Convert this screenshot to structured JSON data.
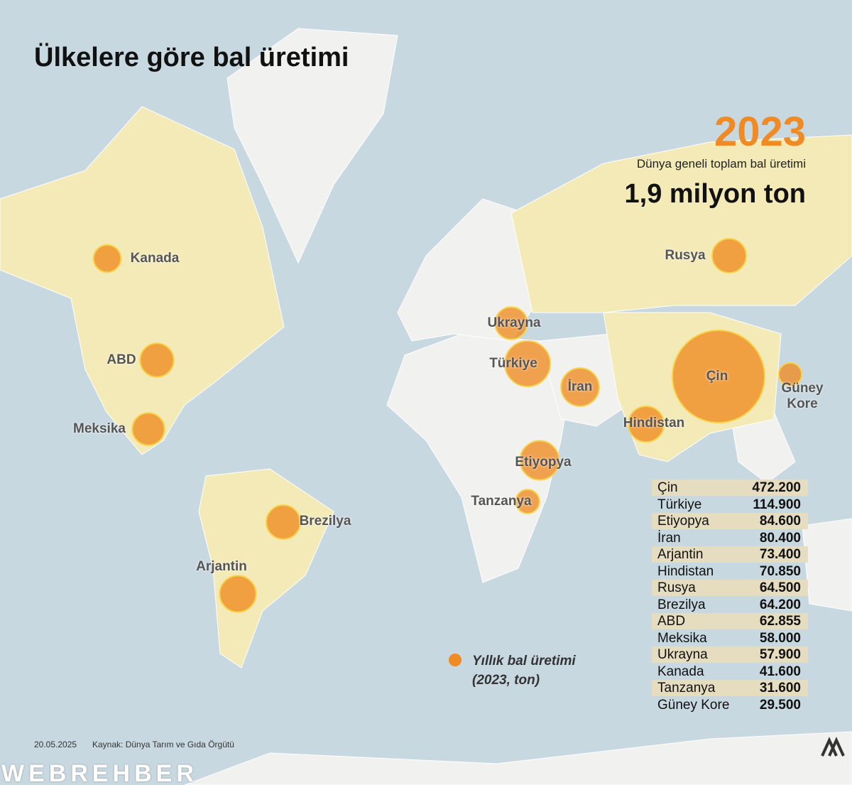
{
  "header": {
    "title": "Ülkelere göre bal üretimi",
    "year": "2023",
    "subtitle": "Dünya geneli toplam bal üretimi",
    "total": "1,9 milyon ton"
  },
  "countries": [
    {
      "name": "Çin",
      "value": 472200,
      "label": "472.200"
    },
    {
      "name": "Türkiye",
      "value": 114900,
      "label": "114.900"
    },
    {
      "name": "Etiyopya",
      "value": 84600,
      "label": "84.600"
    },
    {
      "name": "İran",
      "value": 80400,
      "label": "80.400"
    },
    {
      "name": "Arjantin",
      "value": 73400,
      "label": "73.400"
    },
    {
      "name": "Hindistan",
      "value": 70850,
      "label": "70.850"
    },
    {
      "name": "Rusya",
      "value": 64500,
      "label": "64.500"
    },
    {
      "name": "Brezilya",
      "value": 64200,
      "label": "64.200"
    },
    {
      "name": "ABD",
      "value": 62855,
      "label": "62.855"
    },
    {
      "name": "Meksika",
      "value": 58000,
      "label": "58.000"
    },
    {
      "name": "Ukrayna",
      "value": 57900,
      "label": "57.900"
    },
    {
      "name": "Kanada",
      "value": 41600,
      "label": "41.600"
    },
    {
      "name": "Tanzanya",
      "value": 31600,
      "label": "31.600"
    },
    {
      "name": "Güney Kore",
      "value": 29500,
      "label": "29.500"
    }
  ],
  "legend": {
    "line1": "Yıllık bal üretimi",
    "line2": "(2023, ton)"
  },
  "footer": {
    "date": "20.05.2025",
    "source": "Kaynak: Dünya Tarım ve Gıda Örgütü",
    "watermark": "WEBREHBER"
  }
}
